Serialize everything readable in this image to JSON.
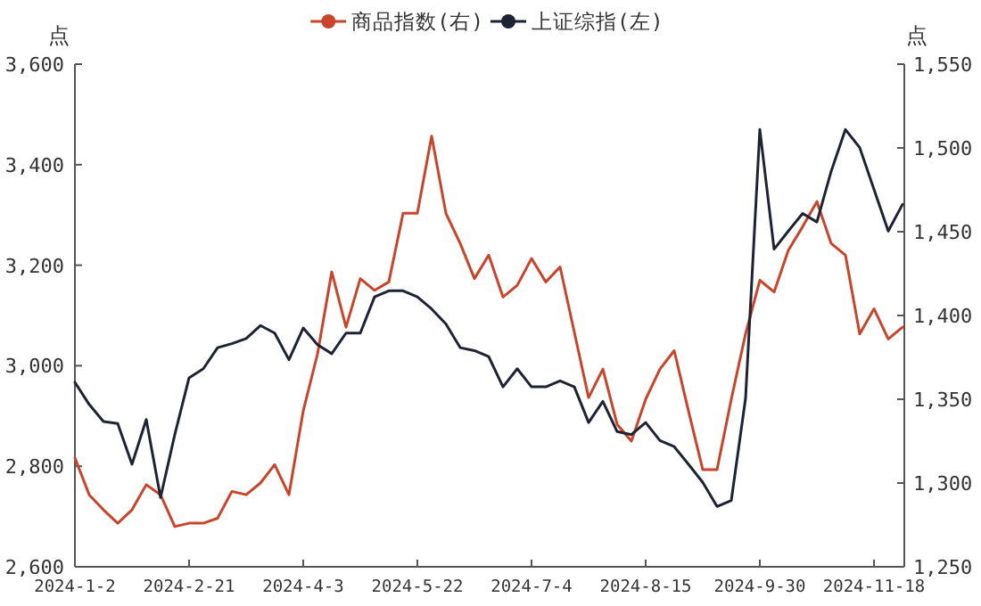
{
  "chart_data": {
    "type": "line",
    "ylabel": "点",
    "y2label": "点",
    "legend": "top",
    "grid": false,
    "categories": [
      "2024-1-2",
      null,
      null,
      null,
      null,
      null,
      null,
      null,
      "2024-2-21",
      null,
      null,
      null,
      null,
      null,
      null,
      null,
      "2024-4-3",
      null,
      null,
      null,
      null,
      null,
      null,
      null,
      "2024-5-22",
      null,
      null,
      null,
      null,
      null,
      null,
      null,
      "2024-7-4",
      null,
      null,
      null,
      null,
      null,
      null,
      null,
      "2024-8-15",
      null,
      null,
      null,
      null,
      null,
      null,
      null,
      "2024-9-30",
      null,
      null,
      null,
      null,
      null,
      null,
      null,
      "2024-11-18",
      null,
      null
    ],
    "ylim": [
      2600,
      3600
    ],
    "yticks": [
      {
        "value": 2600,
        "label": "2,600"
      },
      {
        "value": 2800,
        "label": "2,800"
      },
      {
        "value": 3000,
        "label": "3,000"
      },
      {
        "value": 3200,
        "label": "3,200"
      },
      {
        "value": 3400,
        "label": "3,400"
      },
      {
        "value": 3600,
        "label": "3,600"
      }
    ],
    "y2lim": [
      1250,
      1550
    ],
    "y2ticks": [
      {
        "value": 1250,
        "label": "1,250"
      },
      {
        "value": 1300,
        "label": "1,300"
      },
      {
        "value": 1350,
        "label": "1,350"
      },
      {
        "value": 1400,
        "label": "1,400"
      },
      {
        "value": 1450,
        "label": "1,450"
      },
      {
        "value": 1500,
        "label": "1,500"
      },
      {
        "value": 1550,
        "label": "1,550"
      }
    ],
    "series": [
      {
        "name": "商品指数(右)",
        "color": "#c8442a",
        "axis": "y2",
        "values": [
          1315,
          1293,
          1284,
          1276,
          1284,
          1299,
          1293,
          1274,
          1276,
          1276,
          1279,
          1295,
          1293,
          1300,
          1311,
          1293,
          1343,
          1377,
          1426,
          1393,
          1422,
          1415,
          1420,
          1461,
          1461,
          1507,
          1461,
          1443,
          1422,
          1436,
          1411,
          1418,
          1434,
          1420,
          1429,
          1390,
          1351,
          1368,
          1335,
          1325,
          1350,
          1368,
          1379,
          1343,
          1308,
          1308,
          1350,
          1389,
          1421,
          1414,
          1439,
          1453,
          1468,
          1443,
          1436,
          1389,
          1404,
          1386,
          1393
        ]
      },
      {
        "name": "上证综指(左)",
        "color": "#1f2233",
        "axis": "y",
        "values": [
          2967,
          2923,
          2889,
          2885,
          2804,
          2893,
          2738,
          2863,
          2976,
          2994,
          3036,
          3044,
          3054,
          3080,
          3065,
          3012,
          3075,
          3042,
          3024,
          3065,
          3065,
          3137,
          3149,
          3149,
          3137,
          3113,
          3083,
          3036,
          3030,
          3018,
          2958,
          2994,
          2958,
          2958,
          2970,
          2958,
          2887,
          2929,
          2869,
          2863,
          2887,
          2851,
          2839,
          2804,
          2768,
          2720,
          2732,
          2935,
          3470,
          3232,
          3268,
          3303,
          3286,
          3387,
          3470,
          3434,
          3351,
          3268,
          3321
        ]
      }
    ]
  }
}
